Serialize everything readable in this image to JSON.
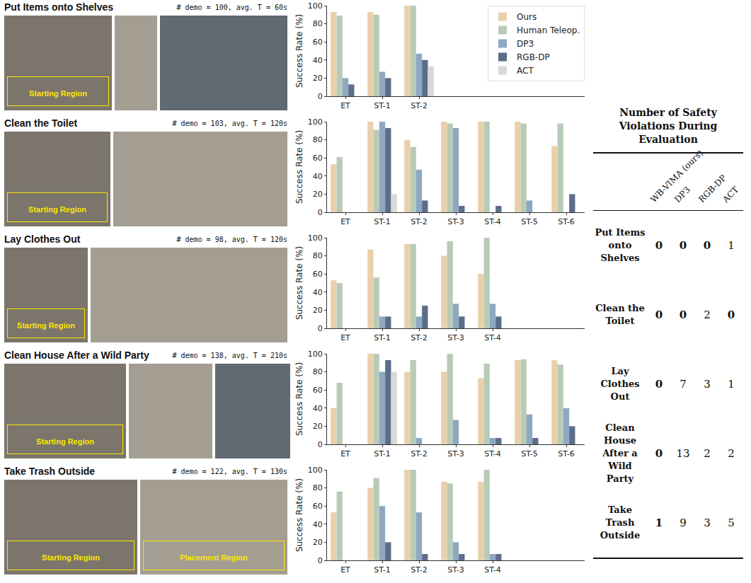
{
  "chart_data": [
    {
      "type": "bar",
      "y_label": "Success Rate (%)",
      "categories": [
        "ET",
        "ST-1",
        "ST-2"
      ],
      "ylim": [
        0,
        100
      ],
      "yticks": [
        0,
        20,
        40,
        60,
        80,
        100
      ],
      "grid": false,
      "legend": "upper right",
      "series": [
        {
          "name": "Ours",
          "color": "#e9d0ab",
          "values": [
            93,
            93,
            100
          ]
        },
        {
          "name": "Human Teleop.",
          "color": "#b8cbb7",
          "values": [
            89,
            90,
            100
          ]
        },
        {
          "name": "DP3",
          "color": "#8ea8c2",
          "values": [
            20,
            27,
            47
          ]
        },
        {
          "name": "RGB-DP",
          "color": "#5b6d89",
          "values": [
            13,
            20,
            40
          ]
        },
        {
          "name": "ACT",
          "color": "#d9d9d5",
          "values": [
            0,
            0,
            33
          ]
        }
      ]
    },
    {
      "type": "bar",
      "y_label": "Success Rate (%)",
      "categories": [
        "ET",
        "ST-1",
        "ST-2",
        "ST-3",
        "ST-4",
        "ST-5",
        "ST-6"
      ],
      "ylim": [
        0,
        100
      ],
      "yticks": [
        0,
        20,
        40,
        60,
        80,
        100
      ],
      "grid": false,
      "series": [
        {
          "name": "Ours",
          "color": "#e9d0ab",
          "values": [
            53,
            100,
            80,
            100,
            100,
            100,
            73
          ]
        },
        {
          "name": "Human Teleop.",
          "color": "#b8cbb7",
          "values": [
            61,
            91,
            72,
            98,
            100,
            98,
            98
          ]
        },
        {
          "name": "DP3",
          "color": "#8ea8c2",
          "values": [
            0,
            100,
            47,
            93,
            0,
            13,
            0
          ]
        },
        {
          "name": "RGB-DP",
          "color": "#5b6d89",
          "values": [
            0,
            93,
            13,
            7,
            7,
            0,
            20
          ]
        },
        {
          "name": "ACT",
          "color": "#d9d9d5",
          "values": [
            0,
            20,
            0,
            0,
            0,
            0,
            0
          ]
        }
      ]
    },
    {
      "type": "bar",
      "y_label": "Success Rate (%)",
      "categories": [
        "ET",
        "ST-1",
        "ST-2",
        "ST-3",
        "ST-4"
      ],
      "ylim": [
        0,
        100
      ],
      "yticks": [
        0,
        20,
        40,
        60,
        80,
        100
      ],
      "grid": false,
      "series": [
        {
          "name": "Ours",
          "color": "#e9d0ab",
          "values": [
            53,
            87,
            93,
            80,
            60
          ]
        },
        {
          "name": "Human Teleop.",
          "color": "#b8cbb7",
          "values": [
            50,
            56,
            93,
            96,
            100
          ]
        },
        {
          "name": "DP3",
          "color": "#8ea8c2",
          "values": [
            0,
            13,
            13,
            27,
            27
          ]
        },
        {
          "name": "RGB-DP",
          "color": "#5b6d89",
          "values": [
            0,
            13,
            25,
            13,
            13
          ]
        },
        {
          "name": "ACT",
          "color": "#d9d9d5",
          "values": [
            0,
            0,
            0,
            0,
            0
          ]
        }
      ]
    },
    {
      "type": "bar",
      "y_label": "Success Rate (%)",
      "categories": [
        "ET",
        "ST-1",
        "ST-2",
        "ST-3",
        "ST-4",
        "ST-5",
        "ST-6"
      ],
      "ylim": [
        0,
        100
      ],
      "yticks": [
        0,
        20,
        40,
        60,
        80,
        100
      ],
      "grid": false,
      "series": [
        {
          "name": "Ours",
          "color": "#e9d0ab",
          "values": [
            40,
            100,
            80,
            80,
            73,
            93,
            93
          ]
        },
        {
          "name": "Human Teleop.",
          "color": "#b8cbb7",
          "values": [
            68,
            100,
            93,
            100,
            89,
            94,
            88
          ]
        },
        {
          "name": "DP3",
          "color": "#8ea8c2",
          "values": [
            0,
            80,
            7,
            27,
            7,
            33,
            40
          ]
        },
        {
          "name": "RGB-DP",
          "color": "#5b6d89",
          "values": [
            0,
            93,
            0,
            0,
            7,
            7,
            20
          ]
        },
        {
          "name": "ACT",
          "color": "#d9d9d5",
          "values": [
            0,
            80,
            0,
            0,
            0,
            0,
            0
          ]
        }
      ]
    },
    {
      "type": "bar",
      "y_label": "Success Rate (%)",
      "categories": [
        "ET",
        "ST-1",
        "ST-2",
        "ST-3",
        "ST-4"
      ],
      "ylim": [
        0,
        100
      ],
      "yticks": [
        0,
        20,
        40,
        60,
        80,
        100
      ],
      "grid": false,
      "series": [
        {
          "name": "Ours",
          "color": "#e9d0ab",
          "values": [
            53,
            80,
            100,
            87,
            87
          ]
        },
        {
          "name": "Human Teleop.",
          "color": "#b8cbb7",
          "values": [
            76,
            91,
            100,
            85,
            100
          ]
        },
        {
          "name": "DP3",
          "color": "#8ea8c2",
          "values": [
            0,
            60,
            53,
            20,
            7
          ]
        },
        {
          "name": "RGB-DP",
          "color": "#5b6d89",
          "values": [
            0,
            20,
            7,
            7,
            7
          ]
        },
        {
          "name": "ACT",
          "color": "#d9d9d5",
          "values": [
            0,
            0,
            0,
            0,
            0
          ]
        }
      ]
    }
  ],
  "tasks": [
    {
      "title": "Put Items onto Shelves",
      "info": "# demo = 100, avg. T = 60s",
      "photo_labels": [
        "Starting Region"
      ]
    },
    {
      "title": "Clean the Toilet",
      "info": "# demo = 103, avg. T = 120s",
      "photo_labels": [
        "Starting Region"
      ]
    },
    {
      "title": "Lay Clothes Out",
      "info": "# demo = 98, avg. T = 120s",
      "photo_labels": [
        "Starting Region"
      ]
    },
    {
      "title": "Clean House After a Wild Party",
      "info": "# demo = 138, avg. T = 210s",
      "photo_labels": [
        "Starting Region"
      ]
    },
    {
      "title": "Take Trash Outside",
      "info": "# demo = 122, avg. T = 130s",
      "photo_labels": [
        "Starting Region",
        "Placement Region"
      ]
    }
  ],
  "table": {
    "title": "Number of Safety Violations During Evaluation",
    "columns": [
      "WB-VIMA (ours)",
      "DP3",
      "RGB-DP",
      "ACT"
    ],
    "rows": [
      {
        "label": "Put Items onto Shelves",
        "values": [
          0,
          0,
          0,
          1
        ]
      },
      {
        "label": "Clean the Toilet",
        "values": [
          0,
          0,
          2,
          0
        ]
      },
      {
        "label": "Lay Clothes Out",
        "values": [
          0,
          7,
          3,
          1
        ]
      },
      {
        "label": "Clean House After a Wild Party",
        "values": [
          0,
          13,
          2,
          2
        ]
      },
      {
        "label": "Take Trash Outside",
        "values": [
          1,
          9,
          3,
          5
        ]
      }
    ]
  }
}
